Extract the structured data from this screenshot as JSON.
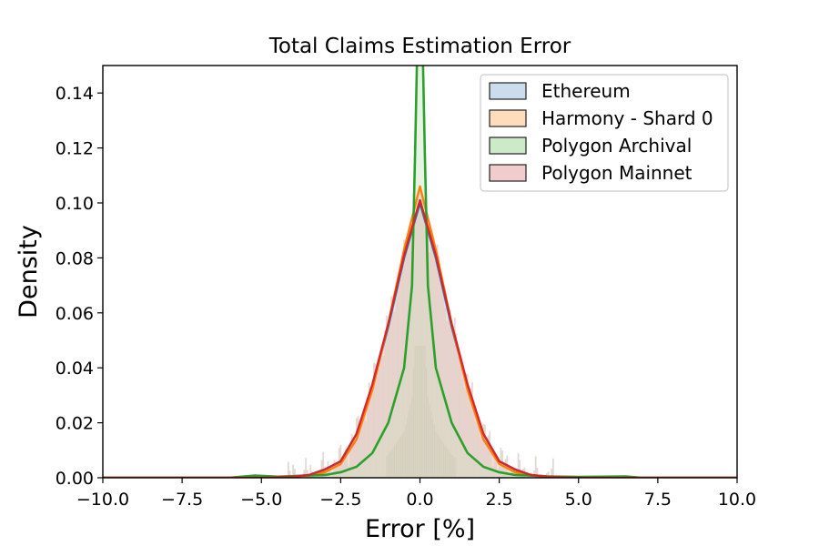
{
  "chart_data": {
    "type": "area",
    "title": "Total Claims Estimation Error",
    "xlabel": "Error [%]",
    "ylabel": "Density",
    "xlim": [
      -10.0,
      10.0
    ],
    "ylim": [
      0.0,
      0.15
    ],
    "xticks": [
      "−10.0",
      "−7.5",
      "−5.0",
      "−2.5",
      "0.0",
      "2.5",
      "5.0",
      "7.5",
      "10.0"
    ],
    "yticks": [
      "0.00",
      "0.02",
      "0.04",
      "0.06",
      "0.08",
      "0.10",
      "0.12",
      "0.14"
    ],
    "grid": false,
    "legend": {
      "position": "top-right",
      "entries": [
        "Ethereum",
        "Harmony - Shard 0",
        "Polygon Archival",
        "Polygon Mainnet"
      ]
    },
    "series": [
      {
        "name": "Ethereum",
        "color": "#1f77b4",
        "fill": "#c5d8ea",
        "points": [
          [
            -10,
            0
          ],
          [
            -6,
            0
          ],
          [
            -5,
            0.0002
          ],
          [
            -4,
            0.0005
          ],
          [
            -3.5,
            0.001
          ],
          [
            -3,
            0.003
          ],
          [
            -2.5,
            0.006
          ],
          [
            -2,
            0.016
          ],
          [
            -1.5,
            0.033
          ],
          [
            -1,
            0.055
          ],
          [
            -0.5,
            0.08
          ],
          [
            0,
            0.1
          ],
          [
            0.5,
            0.08
          ],
          [
            1,
            0.055
          ],
          [
            1.5,
            0.033
          ],
          [
            2,
            0.016
          ],
          [
            2.5,
            0.006
          ],
          [
            3,
            0.003
          ],
          [
            3.5,
            0.001
          ],
          [
            4,
            0.0005
          ],
          [
            5,
            0.0002
          ],
          [
            6,
            0
          ],
          [
            10,
            0
          ]
        ]
      },
      {
        "name": "Harmony - Shard 0",
        "color": "#ff7f0e",
        "fill": "#fdd9b5",
        "points": [
          [
            -10,
            0
          ],
          [
            -5,
            0
          ],
          [
            -4,
            0.0004
          ],
          [
            -3.5,
            0.001
          ],
          [
            -3,
            0.002
          ],
          [
            -2.5,
            0.005
          ],
          [
            -2,
            0.014
          ],
          [
            -1.5,
            0.032
          ],
          [
            -1,
            0.056
          ],
          [
            -0.5,
            0.083
          ],
          [
            0,
            0.106
          ],
          [
            0.5,
            0.083
          ],
          [
            1,
            0.056
          ],
          [
            1.5,
            0.032
          ],
          [
            2,
            0.014
          ],
          [
            2.5,
            0.005
          ],
          [
            3,
            0.002
          ],
          [
            3.5,
            0.001
          ],
          [
            4,
            0.0004
          ],
          [
            5,
            0
          ],
          [
            10,
            0
          ]
        ]
      },
      {
        "name": "Polygon Archival",
        "color": "#2ca02c",
        "fill": "#c9e6c4",
        "points": [
          [
            -10,
            0
          ],
          [
            -6,
            0
          ],
          [
            -5.2,
            0.0008
          ],
          [
            -4.5,
            0.0004
          ],
          [
            -4,
            0.0006
          ],
          [
            -3.5,
            0.0008
          ],
          [
            -3,
            0.001
          ],
          [
            -2.5,
            0.002
          ],
          [
            -2,
            0.004
          ],
          [
            -1.5,
            0.009
          ],
          [
            -1,
            0.02
          ],
          [
            -0.5,
            0.04
          ],
          [
            -0.25,
            0.07
          ],
          [
            -0.15,
            0.12
          ],
          [
            -0.08,
            0.16
          ],
          [
            0,
            0.17
          ],
          [
            0.08,
            0.16
          ],
          [
            0.15,
            0.12
          ],
          [
            0.25,
            0.07
          ],
          [
            0.5,
            0.04
          ],
          [
            1,
            0.02
          ],
          [
            1.5,
            0.009
          ],
          [
            2,
            0.004
          ],
          [
            2.5,
            0.002
          ],
          [
            3,
            0.001
          ],
          [
            3.5,
            0.0008
          ],
          [
            4,
            0.0005
          ],
          [
            5,
            0.0003
          ],
          [
            6.5,
            0.0005
          ],
          [
            7,
            0
          ],
          [
            10,
            0
          ]
        ]
      },
      {
        "name": "Polygon Mainnet",
        "color": "#d62728",
        "fill": "#f0c6c6",
        "points": [
          [
            -10,
            0
          ],
          [
            -5,
            0
          ],
          [
            -4,
            0.0004
          ],
          [
            -3.5,
            0.001
          ],
          [
            -3,
            0.003
          ],
          [
            -2.5,
            0.006
          ],
          [
            -2,
            0.016
          ],
          [
            -1.5,
            0.034
          ],
          [
            -1,
            0.056
          ],
          [
            -0.5,
            0.081
          ],
          [
            0,
            0.101
          ],
          [
            0.5,
            0.081
          ],
          [
            1,
            0.056
          ],
          [
            1.5,
            0.034
          ],
          [
            2,
            0.016
          ],
          [
            2.5,
            0.006
          ],
          [
            3,
            0.003
          ],
          [
            3.5,
            0.001
          ],
          [
            4,
            0.0004
          ],
          [
            5,
            0
          ],
          [
            10,
            0
          ]
        ]
      }
    ]
  }
}
